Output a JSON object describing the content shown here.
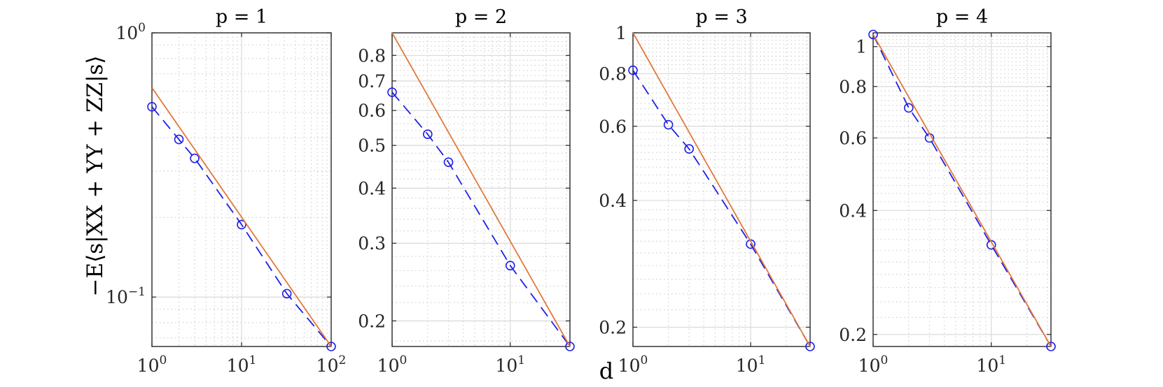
{
  "figure": {
    "ylabel": "−E⟨s|XX + YY + ZZ|s⟩",
    "xlabel": "d"
  },
  "colors": {
    "simulated": "#1f1fe6",
    "fit": "#e07a3c",
    "grid_major": "#d9d9d9",
    "grid_minor": "#d0d0d0",
    "axes": "#262626"
  },
  "chart_data": [
    {
      "type": "line",
      "title": "p = 1",
      "xscale": "log",
      "yscale": "log",
      "xlim": [
        1,
        100
      ],
      "ylim": [
        0.065,
        1.0
      ],
      "xticks": [
        {
          "label": "10",
          "exp": "0"
        },
        {
          "label": "10",
          "exp": "1"
        },
        {
          "label": "10",
          "exp": "2"
        }
      ],
      "xtick_values": [
        1,
        10,
        100
      ],
      "yticks": [
        {
          "label": "10",
          "exp": "−1"
        },
        {
          "label": "10",
          "exp": "0"
        }
      ],
      "ytick_values": [
        0.1,
        1.0
      ],
      "grid": true,
      "series": [
        {
          "style": "dashed-circles",
          "x": [
            1,
            2,
            3,
            10,
            32,
            100
          ],
          "y": [
            0.525,
            0.395,
            0.335,
            0.188,
            0.103,
            0.065
          ]
        },
        {
          "style": "solid",
          "x": [
            1,
            100
          ],
          "y": [
            0.62,
            0.065
          ]
        }
      ]
    },
    {
      "type": "line",
      "title": "p = 2",
      "xscale": "log",
      "yscale": "log",
      "xlim": [
        1,
        32
      ],
      "ylim": [
        0.175,
        0.9
      ],
      "xticks": [
        {
          "label": "10",
          "exp": "0"
        },
        {
          "label": "10",
          "exp": "1"
        }
      ],
      "xtick_values": [
        1,
        10
      ],
      "yticks": [
        {
          "label": "0.2"
        },
        {
          "label": "0.3"
        },
        {
          "label": "0.4"
        },
        {
          "label": "0.5"
        },
        {
          "label": "0.6"
        },
        {
          "label": "0.7"
        },
        {
          "label": "0.8"
        }
      ],
      "ytick_values": [
        0.2,
        0.3,
        0.4,
        0.5,
        0.6,
        0.7,
        0.8
      ],
      "grid": true,
      "series": [
        {
          "style": "dashed-circles",
          "x": [
            1,
            2,
            3,
            10,
            32
          ],
          "y": [
            0.66,
            0.53,
            0.458,
            0.267,
            0.175
          ]
        },
        {
          "style": "solid",
          "x": [
            1,
            32
          ],
          "y": [
            0.9,
            0.175
          ]
        }
      ]
    },
    {
      "type": "line",
      "title": "p = 3",
      "xscale": "log",
      "yscale": "log",
      "xlim": [
        1,
        32
      ],
      "ylim": [
        0.18,
        1.0
      ],
      "xticks": [
        {
          "label": "10",
          "exp": "0"
        },
        {
          "label": "10",
          "exp": "1"
        }
      ],
      "xtick_values": [
        1,
        10
      ],
      "yticks": [
        {
          "label": "0.2"
        },
        {
          "label": "0.4"
        },
        {
          "label": "0.6"
        },
        {
          "label": "0.8"
        },
        {
          "label": "1"
        }
      ],
      "ytick_values": [
        0.2,
        0.4,
        0.6,
        0.8,
        1.0
      ],
      "grid": true,
      "series": [
        {
          "style": "dashed-circles",
          "x": [
            1,
            2,
            3,
            10,
            32
          ],
          "y": [
            0.815,
            0.605,
            0.53,
            0.315,
            0.18
          ]
        },
        {
          "style": "solid",
          "x": [
            1,
            32
          ],
          "y": [
            1.0,
            0.18
          ]
        }
      ]
    },
    {
      "type": "line",
      "title": "p = 4",
      "xscale": "log",
      "yscale": "log",
      "xlim": [
        1,
        32
      ],
      "ylim": [
        0.187,
        1.08
      ],
      "xticks": [
        {
          "label": "10",
          "exp": "0"
        },
        {
          "label": "10",
          "exp": "1"
        }
      ],
      "xtick_values": [
        1,
        10
      ],
      "yticks": [
        {
          "label": "0.2"
        },
        {
          "label": "0.4"
        },
        {
          "label": "0.6"
        },
        {
          "label": "0.8"
        },
        {
          "label": "1"
        }
      ],
      "ytick_values": [
        0.2,
        0.4,
        0.6,
        0.8,
        1.0
      ],
      "grid": true,
      "series": [
        {
          "style": "dashed-circles",
          "x": [
            1,
            2,
            3,
            10,
            32
          ],
          "y": [
            1.07,
            0.71,
            0.6,
            0.33,
            0.187
          ]
        },
        {
          "style": "solid",
          "x": [
            1,
            32
          ],
          "y": [
            1.07,
            0.187
          ]
        }
      ]
    }
  ]
}
